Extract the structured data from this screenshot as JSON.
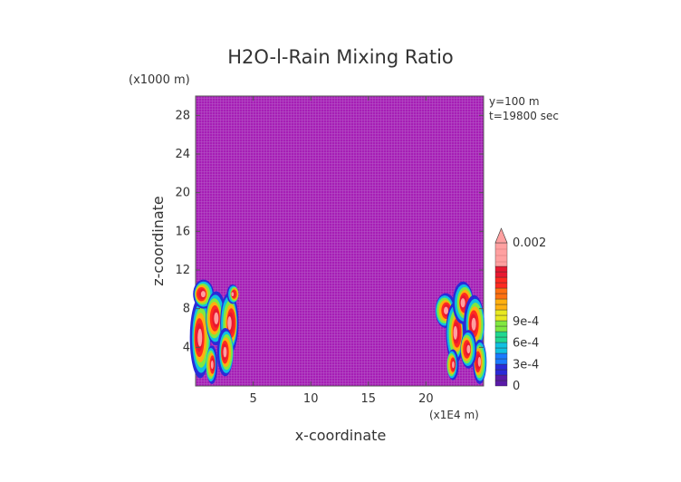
{
  "chart_data": {
    "type": "heatmap",
    "title": "H2O-l-Rain Mixing Ratio",
    "xlabel": "x-coordinate",
    "ylabel": "z-coordinate",
    "x_unit": "(x1E4 m)",
    "y_unit": "(x1000 m)",
    "xlim": [
      0,
      25
    ],
    "ylim": [
      0,
      30
    ],
    "x_ticks": [
      "5",
      "10",
      "15",
      "20"
    ],
    "x_tick_values": [
      5,
      10,
      15,
      20
    ],
    "y_ticks": [
      "4",
      "8",
      "12",
      "16",
      "20",
      "24",
      "28"
    ],
    "y_tick_values": [
      4,
      8,
      12,
      16,
      20,
      24,
      28
    ],
    "annotations": [
      "y=100 m",
      "t=19800 sec"
    ],
    "background_color": "#a61eb5",
    "colorbar": {
      "labels": [
        "0",
        "3e-4",
        "6e-4",
        "9e-4",
        "0.002"
      ],
      "label_values": [
        0,
        0.0003,
        0.0006,
        0.0009,
        0.002
      ],
      "range": [
        0,
        0.002
      ],
      "colors": [
        "#5a1aa8",
        "#2a2ad8",
        "#1a7aff",
        "#10c0e0",
        "#20d890",
        "#80e840",
        "#e8e820",
        "#ffb010",
        "#ff7010",
        "#ff2a20",
        "#e81830",
        "#ffa0a0"
      ]
    },
    "regions": [
      {
        "name": "left-band",
        "x_range": [
          0,
          4
        ],
        "z_range": [
          0,
          11
        ],
        "max_value": 0.002
      },
      {
        "name": "right-band",
        "x_range": [
          20.5,
          25
        ],
        "z_range": [
          0,
          11
        ],
        "max_value": 0.002
      }
    ]
  }
}
